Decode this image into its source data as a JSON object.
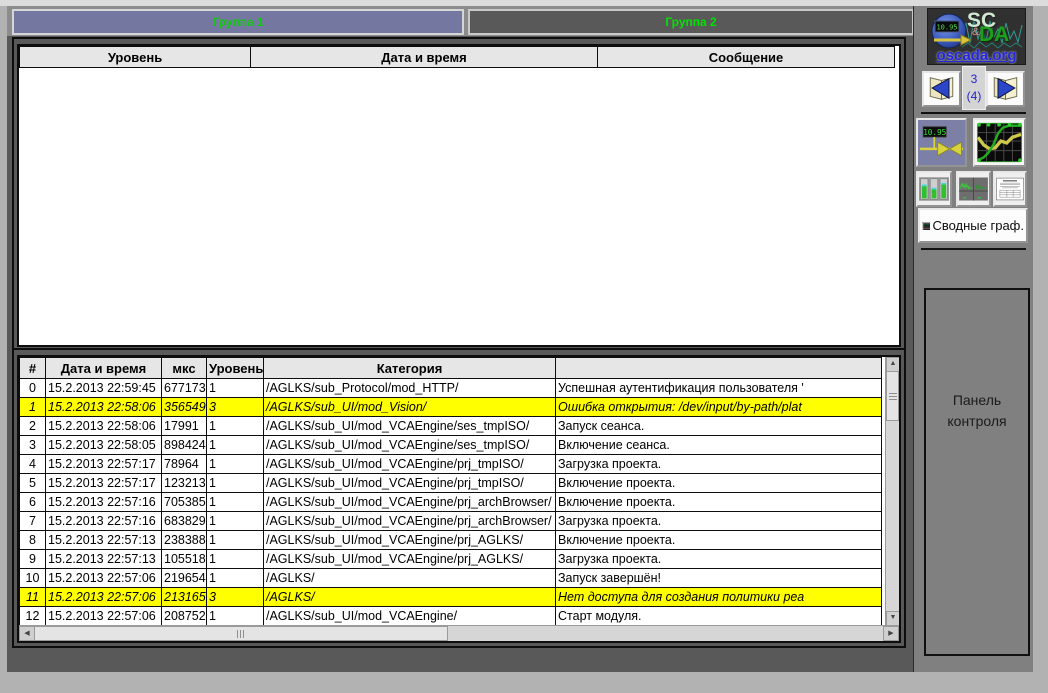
{
  "tabs": [
    {
      "label": "Группа 1",
      "bg": "#7478a0",
      "text_color": "#17c617"
    },
    {
      "label": "Группа 2",
      "bg": "#595959",
      "text_color": "#00e400"
    }
  ],
  "upper_table": {
    "columns": [
      "Уровень",
      "Дата и время",
      "Сообщение"
    ],
    "rows": []
  },
  "lower_table": {
    "columns": [
      "#",
      "Дата и время",
      "мкс",
      "Уровень",
      "Категория",
      ""
    ],
    "alarm_row_color": "#ffff00",
    "rows": [
      {
        "cells": [
          "0",
          "15.2.2013 22:59:45",
          "677173",
          "1",
          "/AGLKS/sub_Protocol/mod_HTTP/",
          "Успешная аутентификация пользователя '"
        ],
        "alarm": false
      },
      {
        "cells": [
          "1",
          "15.2.2013 22:58:06",
          "356549",
          "3",
          "/AGLKS/sub_UI/mod_Vision/",
          "Ошибка открытия: /dev/input/by-path/plat"
        ],
        "alarm": true
      },
      {
        "cells": [
          "2",
          "15.2.2013 22:58:06",
          "17991",
          "1",
          "/AGLKS/sub_UI/mod_VCAEngine/ses_tmpISO/",
          "Запуск сеанса."
        ],
        "alarm": false
      },
      {
        "cells": [
          "3",
          "15.2.2013 22:58:05",
          "898424",
          "1",
          "/AGLKS/sub_UI/mod_VCAEngine/ses_tmpISO/",
          "Включение сеанса."
        ],
        "alarm": false
      },
      {
        "cells": [
          "4",
          "15.2.2013 22:57:17",
          "78964",
          "1",
          "/AGLKS/sub_UI/mod_VCAEngine/prj_tmpISO/",
          "Загрузка проекта."
        ],
        "alarm": false
      },
      {
        "cells": [
          "5",
          "15.2.2013 22:57:17",
          "123213",
          "1",
          "/AGLKS/sub_UI/mod_VCAEngine/prj_tmpISO/",
          "Включение проекта."
        ],
        "alarm": false
      },
      {
        "cells": [
          "6",
          "15.2.2013 22:57:16",
          "705385",
          "1",
          "/AGLKS/sub_UI/mod_VCAEngine/prj_archBrowser/",
          "Включение проекта."
        ],
        "alarm": false
      },
      {
        "cells": [
          "7",
          "15.2.2013 22:57:16",
          "683829",
          "1",
          "/AGLKS/sub_UI/mod_VCAEngine/prj_archBrowser/",
          "Загрузка проекта."
        ],
        "alarm": false
      },
      {
        "cells": [
          "8",
          "15.2.2013 22:57:13",
          "238388",
          "1",
          "/AGLKS/sub_UI/mod_VCAEngine/prj_AGLKS/",
          "Включение проекта."
        ],
        "alarm": false
      },
      {
        "cells": [
          "9",
          "15.2.2013 22:57:13",
          "105518",
          "1",
          "/AGLKS/sub_UI/mod_VCAEngine/prj_AGLKS/",
          "Загрузка проекта."
        ],
        "alarm": false
      },
      {
        "cells": [
          "10",
          "15.2.2013 22:57:06",
          "219654",
          "1",
          "/AGLKS/",
          "Запуск завершён!"
        ],
        "alarm": false
      },
      {
        "cells": [
          "11",
          "15.2.2013 22:57:06",
          "213165",
          "3",
          "/AGLKS/",
          "Нет доступа для создания политики реа"
        ],
        "alarm": true
      },
      {
        "cells": [
          "12",
          "15.2.2013 22:57:06",
          "208752",
          "1",
          "/AGLKS/sub_UI/mod_VCAEngine/",
          "Старт модуля."
        ],
        "alarm": false
      }
    ]
  },
  "side_panel": {
    "logo": {
      "line1": "SC",
      "amp": "&",
      "line2": "DA",
      "site": "oscada.org",
      "clock": "10.95"
    },
    "pager": {
      "current": "3",
      "total": "(4)"
    },
    "mnemo_display": "10.95",
    "summary_graphs_label": "Сводные граф.",
    "control_panel_label": "Панель контроля"
  },
  "icons": {
    "up": "▲",
    "down": "▼",
    "left": "◀",
    "right": "▶"
  },
  "colors": {
    "frame": "#595959",
    "tab_strip": "#8c8c8c",
    "header_bg": "#e6e6e6",
    "panel_bg": "#808080",
    "link_blue": "#2323cc",
    "alarm_yellow": "#ffff00",
    "tab_green": "#00e400",
    "valve_yellow": "#d8d23e",
    "trend_green": "#1fae1f"
  }
}
